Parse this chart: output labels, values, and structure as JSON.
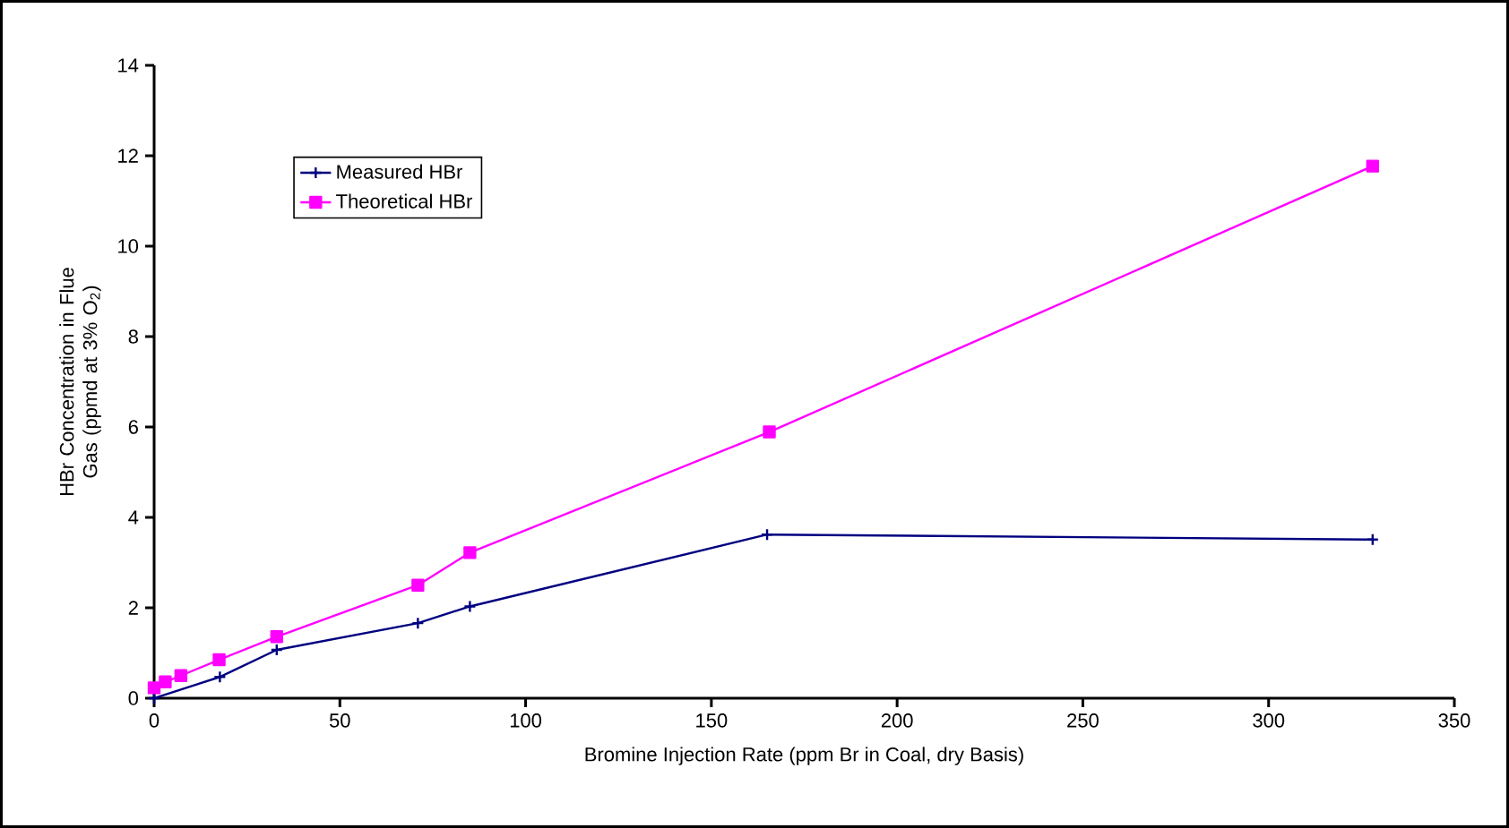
{
  "chart_data": {
    "type": "line",
    "xlabel": "Bromine Injection Rate (ppm Br in Coal, dry Basis)",
    "ylabel": "HBr Concentration in Flue Gas (ppmd at 3% O$_{2}$)",
    "xlim": [
      0,
      350
    ],
    "xticks": [
      0,
      50,
      100,
      150,
      200,
      250,
      300,
      350
    ],
    "ylim": [
      0,
      14
    ],
    "yticks": [
      0,
      2,
      4,
      6,
      8,
      10,
      12,
      14
    ],
    "grid": false,
    "legend": "top left",
    "line_style": "solid",
    "series": [
      {
        "name": "Measured HBr",
        "color": "#000080",
        "marker": "cross",
        "x": [
          0,
          3,
          17.7,
          33,
          71,
          85,
          165,
          328
        ],
        "values": [
          0,
          null,
          0.47,
          1.07,
          1.66,
          2.03,
          3.62,
          3.51
        ]
      },
      {
        "name": "Theoretical HBr",
        "color": "#ff00ff",
        "marker": "square",
        "x": [
          0,
          3,
          7.2,
          17.5,
          33,
          71,
          85,
          165.6,
          328
        ],
        "values": [
          0.23,
          0.36,
          0.5,
          0.85,
          1.36,
          2.5,
          3.22,
          5.89,
          11.77
        ]
      }
    ]
  }
}
